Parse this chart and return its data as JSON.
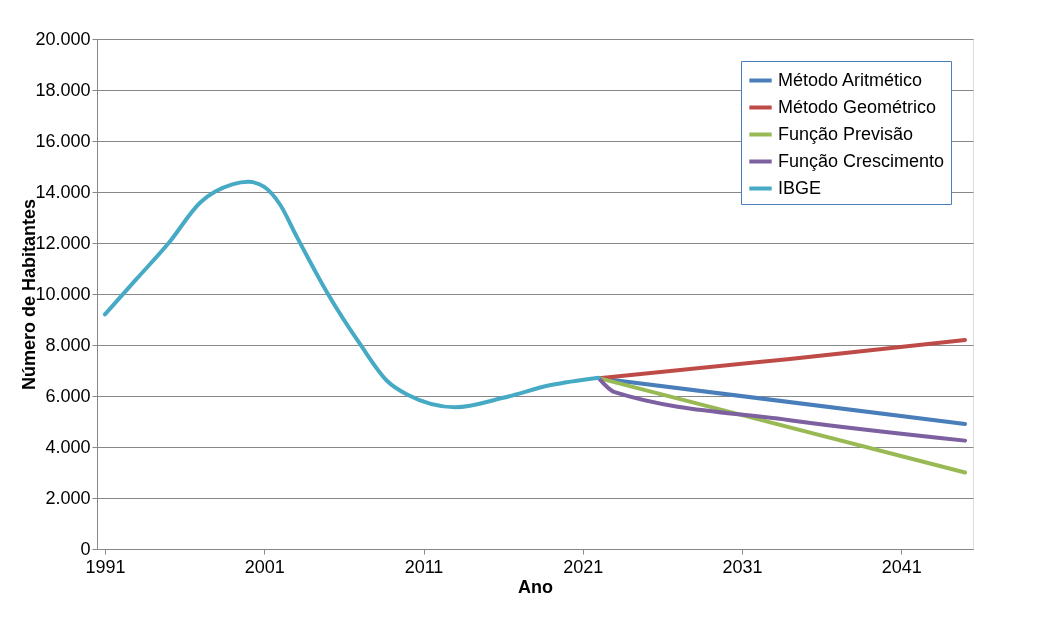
{
  "chart_data": {
    "type": "line",
    "xlabel": "Ano",
    "ylabel": "Número de Habitantes",
    "xlim": [
      1990.5,
      2045.5
    ],
    "xticks": [
      1991,
      2001,
      2011,
      2021,
      2031,
      2041
    ],
    "ylim": [
      0,
      20000
    ],
    "yticks": [
      {
        "value": 0,
        "label": "0"
      },
      {
        "value": 2000,
        "label": "2.000"
      },
      {
        "value": 4000,
        "label": "4.000"
      },
      {
        "value": 6000,
        "label": "6.000"
      },
      {
        "value": 8000,
        "label": "8.000"
      },
      {
        "value": 10000,
        "label": "10.000"
      },
      {
        "value": 12000,
        "label": "12.000"
      },
      {
        "value": 14000,
        "label": "14.000"
      },
      {
        "value": 16000,
        "label": "16.000"
      },
      {
        "value": 18000,
        "label": "18.000"
      },
      {
        "value": 20000,
        "label": "20.000"
      }
    ],
    "grid": "y",
    "legend": "top right",
    "marker": "none",
    "line_style": "solid",
    "series": [
      {
        "name": "Método Aritmético",
        "color": "#4a7ebb",
        "x": [
          2022,
          2045
        ],
        "values": [
          6700,
          4900
        ]
      },
      {
        "name": "Método Geométrico",
        "color": "#be4b48",
        "x": [
          2022,
          2034,
          2045
        ],
        "values": [
          6700,
          7450,
          8200
        ]
      },
      {
        "name": "Função Previsão",
        "color": "#98b954",
        "x": [
          2022,
          2045
        ],
        "values": [
          6700,
          3000
        ]
      },
      {
        "name": "Função Crescimento",
        "color": "#7d60a0",
        "x": [
          2022,
          2023,
          2034,
          2045
        ],
        "values": [
          6700,
          6150,
          5050,
          4250
        ]
      },
      {
        "name": "IBGE",
        "color": "#46aac5",
        "x": [
          1991,
          1993,
          1995,
          1997,
          1999,
          2000,
          2001,
          2002,
          2003,
          2005,
          2007,
          2008.7,
          2010,
          2013,
          2016,
          2019,
          2022
        ],
        "values": [
          9200,
          10600,
          12000,
          13600,
          14300,
          14400,
          14200,
          13500,
          12300,
          10000,
          8050,
          6600,
          6050,
          5560,
          5930,
          6430,
          6720
        ]
      }
    ]
  }
}
